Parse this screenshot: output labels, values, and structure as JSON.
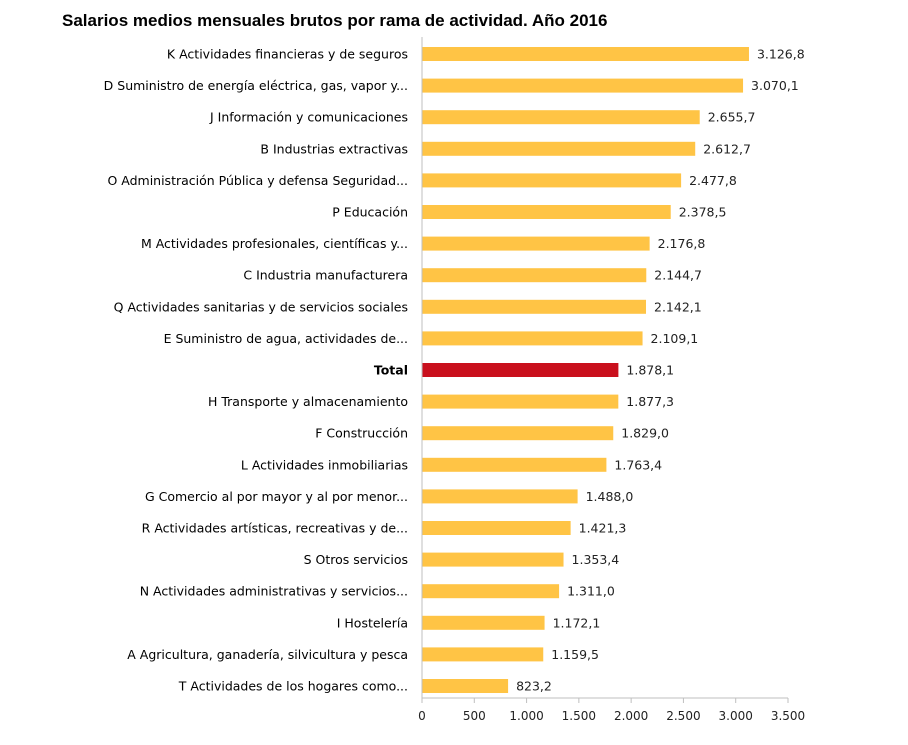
{
  "chart_data": {
    "type": "bar",
    "orientation": "horizontal",
    "title": "Salarios medios mensuales brutos por rama de actividad. Año 2016",
    "categories": [
      "K  Actividades financieras y de seguros",
      "D  Suministro de energía eléctrica, gas, vapor y...",
      "J  Información y comunicaciones",
      "B  Industrias extractivas",
      "O  Administración Pública y defensa Seguridad...",
      "P  Educación",
      "M  Actividades profesionales, científicas y...",
      "C  Industria manufacturera",
      "Q  Actividades sanitarias y de servicios sociales",
      "E  Suministro de agua, actividades de...",
      "Total",
      "H  Transporte y almacenamiento",
      "F  Construcción",
      "L  Actividades inmobiliarias",
      "G  Comercio al por mayor y al por menor...",
      "R  Actividades artísticas, recreativas y de...",
      "S  Otros servicios",
      "N  Actividades administrativas y servicios...",
      "I  Hostelería",
      "A  Agricultura, ganadería, silvicultura y pesca",
      "T  Actividades de los hogares como..."
    ],
    "values": [
      3126.8,
      3070.1,
      2655.7,
      2612.7,
      2477.8,
      2378.5,
      2176.8,
      2144.7,
      2142.1,
      2109.1,
      1878.1,
      1877.3,
      1829.0,
      1763.4,
      1488.0,
      1421.3,
      1353.4,
      1311.0,
      1172.1,
      1159.5,
      823.2
    ],
    "value_labels": [
      "3.126,8",
      "3.070,1",
      "2.655,7",
      "2.612,7",
      "2.477,8",
      "2.378,5",
      "2.176,8",
      "2.144,7",
      "2.142,1",
      "2.109,1",
      "1.878,1",
      "1.877,3",
      "1.829,0",
      "1.763,4",
      "1.488,0",
      "1.421,3",
      "1.353,4",
      "1.311,0",
      "1.172,1",
      "1.159,5",
      "823,2"
    ],
    "highlight": [
      "Total"
    ],
    "xlim": [
      0,
      3500
    ],
    "xticks": [
      0,
      500,
      1000,
      1500,
      2000,
      2500,
      3000,
      3500
    ],
    "xtick_labels": [
      "0",
      "500",
      "1.000",
      "1.500",
      "2.000",
      "2.500",
      "3.000",
      "3.500"
    ],
    "xlabel": "",
    "ylabel": "",
    "grid": false,
    "legend": "none",
    "colors": {
      "bar": "#FFC445",
      "highlight": "#C9101D",
      "axis": "#BFBFBF"
    }
  }
}
